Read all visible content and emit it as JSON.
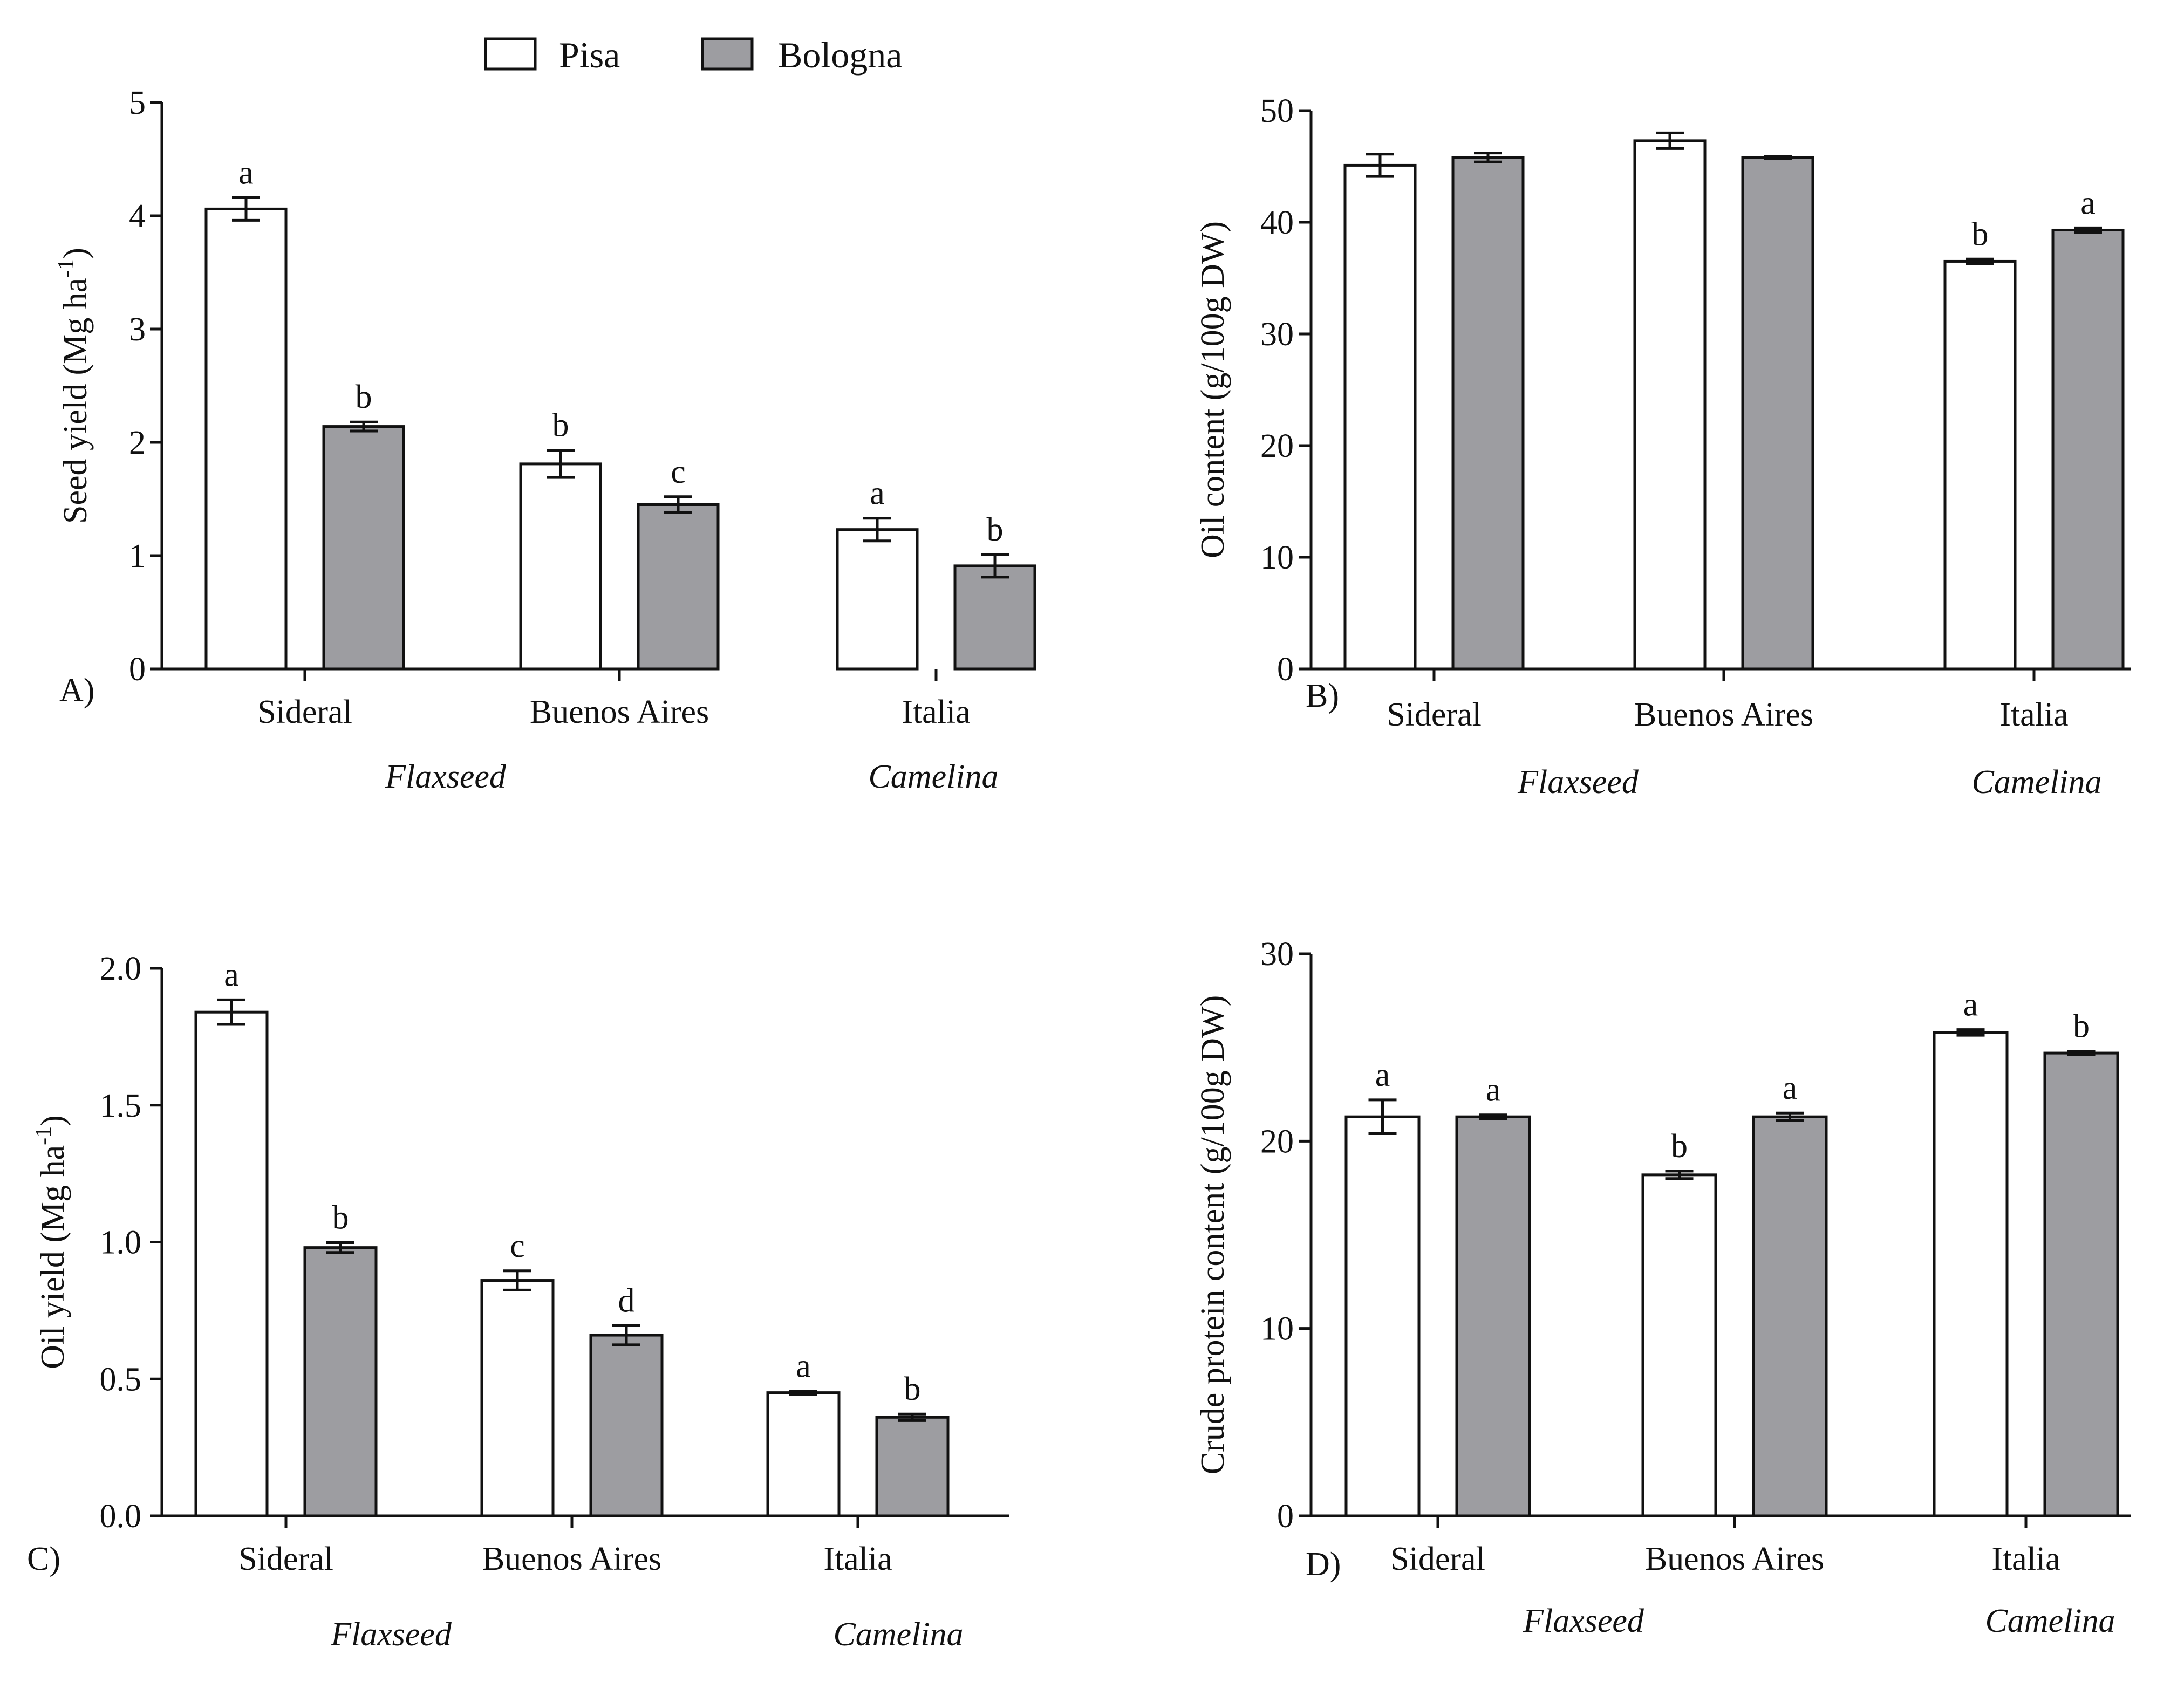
{
  "legend": {
    "entries": [
      {
        "name": "Pisa",
        "color": "#ffffff"
      },
      {
        "name": "Bologna",
        "color": "#9d9da1"
      }
    ]
  },
  "chart_data": [
    {
      "type": "bar",
      "panel_label": "A)",
      "ylabel": "Seed yield (Mg ha",
      "ylabel_sup": "-1",
      "ylabel_end": ")",
      "ylim": [
        0,
        5
      ],
      "ticks": [
        0,
        1,
        2,
        3,
        4,
        5
      ],
      "tick_labels": [
        "0",
        "1",
        "2",
        "3",
        "4",
        "5"
      ],
      "categories": [
        "Sideral",
        "Buenos Aires",
        "Italia"
      ],
      "groups": [
        {
          "label": "Flaxseed"
        },
        {
          "label": "Camelina"
        }
      ],
      "series": [
        {
          "name": "Pisa",
          "values": [
            4.06,
            1.81,
            1.23
          ],
          "errors": [
            0.1,
            0.12,
            0.1
          ],
          "letters": [
            "a",
            "b",
            "a"
          ]
        },
        {
          "name": "Bologna",
          "values": [
            2.14,
            1.45,
            0.91
          ],
          "errors": [
            0.04,
            0.07,
            0.1
          ],
          "letters": [
            "b",
            "c",
            "b"
          ]
        }
      ]
    },
    {
      "type": "bar",
      "panel_label": "B)",
      "ylabel": "Oil content (g/100g DW)",
      "ylabel_sup": "",
      "ylabel_end": "",
      "ylim": [
        0,
        50
      ],
      "ticks": [
        0,
        10,
        20,
        30,
        40,
        50
      ],
      "tick_labels": [
        "0",
        "10",
        "20",
        "30",
        "40",
        "50"
      ],
      "categories": [
        "Sideral",
        "Buenos Aires",
        "Italia"
      ],
      "groups": [
        {
          "label": "Flaxseed"
        },
        {
          "label": "Camelina"
        }
      ],
      "series": [
        {
          "name": "Pisa",
          "values": [
            45.1,
            47.3,
            36.5
          ],
          "errors": [
            1.0,
            0.7,
            0.2
          ],
          "letters": [
            "",
            "",
            "b"
          ]
        },
        {
          "name": "Bologna",
          "values": [
            45.8,
            45.8,
            39.3
          ],
          "errors": [
            0.4,
            0.1,
            0.2
          ],
          "letters": [
            "",
            "",
            "a"
          ]
        }
      ]
    },
    {
      "type": "bar",
      "panel_label": "C)",
      "ylabel": "Oil yield (Mg ha",
      "ylabel_sup": "-1",
      "ylabel_end": ")",
      "ylim": [
        0,
        2.0
      ],
      "ticks": [
        0,
        0.5,
        1.0,
        1.5,
        2.0
      ],
      "tick_labels": [
        "0.0",
        "0.5",
        "1.0",
        "1.5",
        "2.0"
      ],
      "categories": [
        "Sideral",
        "Buenos Aires",
        "Italia"
      ],
      "groups": [
        {
          "label": "Flaxseed"
        },
        {
          "label": "Camelina"
        }
      ],
      "series": [
        {
          "name": "Pisa",
          "values": [
            1.84,
            0.86,
            0.45
          ],
          "errors": [
            0.045,
            0.035,
            0.006
          ],
          "letters": [
            "a",
            "c",
            "a"
          ]
        },
        {
          "name": "Bologna",
          "values": [
            0.98,
            0.66,
            0.36
          ],
          "errors": [
            0.018,
            0.035,
            0.012
          ],
          "letters": [
            "b",
            "d",
            "b"
          ]
        }
      ]
    },
    {
      "type": "bar",
      "panel_label": "D)",
      "ylabel": "Crude protein content (g/100g DW)",
      "ylabel_sup": "",
      "ylabel_end": "",
      "ylim": [
        0,
        30
      ],
      "ticks": [
        0,
        10,
        20,
        30
      ],
      "tick_labels": [
        "0",
        "10",
        "20",
        "30"
      ],
      "categories": [
        "Sideral",
        "Buenos Aires",
        "Italia"
      ],
      "groups": [
        {
          "label": "Flaxseed"
        },
        {
          "label": "Camelina"
        }
      ],
      "series": [
        {
          "name": "Pisa",
          "values": [
            21.3,
            18.2,
            25.8
          ],
          "errors": [
            0.9,
            0.2,
            0.15
          ],
          "letters": [
            "a",
            "b",
            "a"
          ]
        },
        {
          "name": "Bologna",
          "values": [
            21.3,
            21.3,
            24.7
          ],
          "errors": [
            0.1,
            0.2,
            0.1
          ],
          "letters": [
            "a",
            "a",
            "b"
          ]
        }
      ]
    }
  ]
}
